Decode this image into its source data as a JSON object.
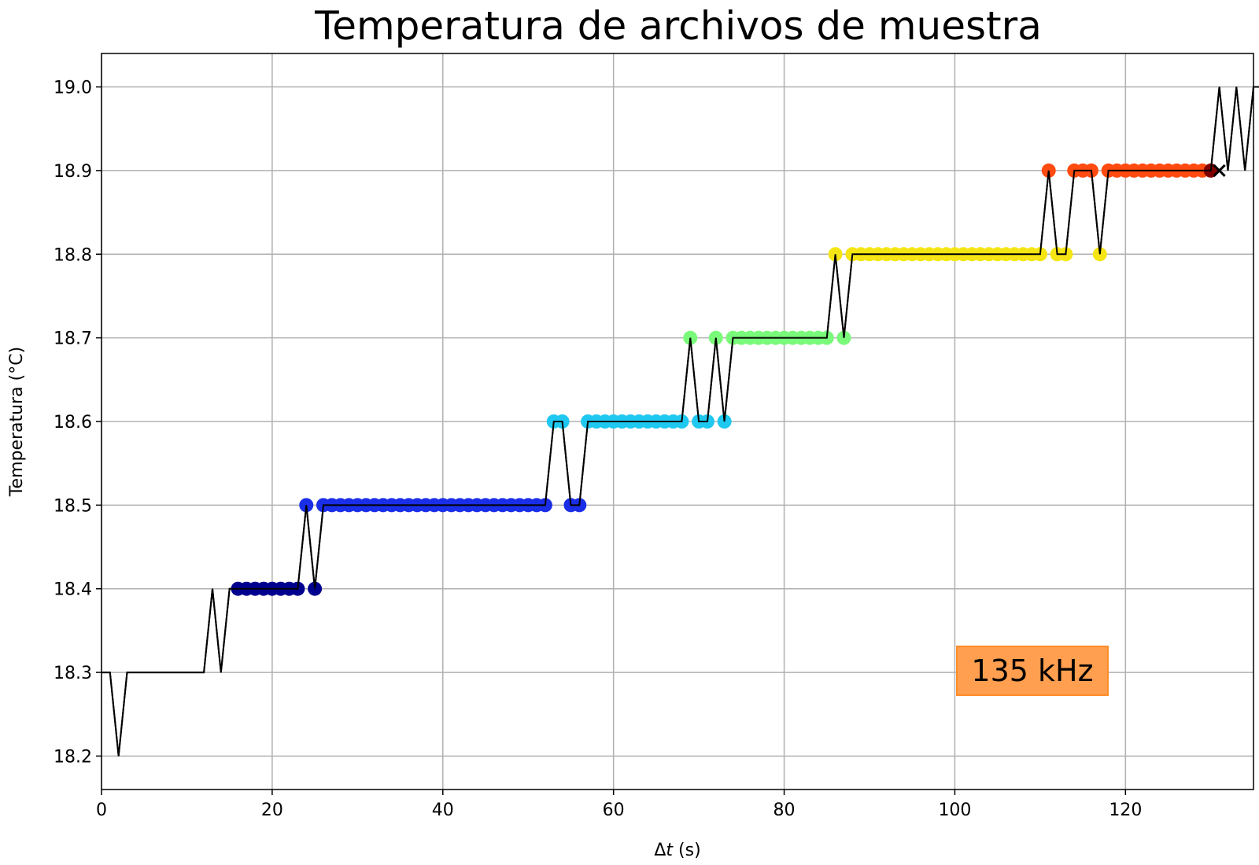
{
  "chart_data": {
    "type": "line",
    "title": "Temperatura de archivos de muestra",
    "xlabel_prefix": "Δ",
    "xlabel_var": "t",
    "xlabel_suffix": " (s)",
    "ylabel": "Temperatura (°C)",
    "xlim": [
      0,
      135
    ],
    "ylim": [
      18.16,
      19.04
    ],
    "xticks": [
      0,
      20,
      40,
      60,
      80,
      100,
      120
    ],
    "xtick_labels": [
      "0",
      "20",
      "40",
      "60",
      "80",
      "100",
      "120"
    ],
    "yticks": [
      18.2,
      18.3,
      18.4,
      18.5,
      18.6,
      18.7,
      18.8,
      18.9,
      19.0
    ],
    "ytick_labels": [
      "18.2",
      "18.3",
      "18.4",
      "18.5",
      "18.6",
      "18.7",
      "18.8",
      "18.9",
      "19.0"
    ],
    "grid": true,
    "annotation": {
      "text": "135 kHz",
      "position": "bottom-right",
      "color": "#ff9f4f"
    },
    "line_color": "#000000",
    "series": [
      {
        "values": [
          18.3,
          18.3,
          18.2,
          18.3,
          18.3,
          18.3,
          18.3,
          18.3,
          18.3,
          18.3,
          18.3,
          18.3,
          18.3,
          18.4,
          18.3,
          18.4,
          18.4,
          18.4,
          18.4,
          18.4,
          18.4,
          18.4,
          18.4,
          18.4,
          18.5,
          18.4,
          18.5,
          18.5,
          18.5,
          18.5,
          18.5,
          18.5,
          18.5,
          18.5,
          18.5,
          18.5,
          18.5,
          18.5,
          18.5,
          18.5,
          18.5,
          18.5,
          18.5,
          18.5,
          18.5,
          18.5,
          18.5,
          18.5,
          18.5,
          18.5,
          18.5,
          18.5,
          18.5,
          18.6,
          18.6,
          18.5,
          18.5,
          18.6,
          18.6,
          18.6,
          18.6,
          18.6,
          18.6,
          18.6,
          18.6,
          18.6,
          18.6,
          18.6,
          18.6,
          18.7,
          18.6,
          18.6,
          18.7,
          18.6,
          18.7,
          18.7,
          18.7,
          18.7,
          18.7,
          18.7,
          18.7,
          18.7,
          18.7,
          18.7,
          18.7,
          18.7,
          18.8,
          18.7,
          18.8,
          18.8,
          18.8,
          18.8,
          18.8,
          18.8,
          18.8,
          18.8,
          18.8,
          18.8,
          18.8,
          18.8,
          18.8,
          18.8,
          18.8,
          18.8,
          18.8,
          18.8,
          18.8,
          18.8,
          18.8,
          18.8,
          18.8,
          18.9,
          18.8,
          18.8,
          18.9,
          18.9,
          18.9,
          18.8,
          18.9,
          18.9,
          18.9,
          18.9,
          18.9,
          18.9,
          18.9,
          18.9,
          18.9,
          18.9,
          18.9,
          18.9,
          18.9,
          19.0,
          18.9,
          19.0,
          18.9,
          19.0,
          19.0
        ]
      }
    ],
    "marker_groups": [
      {
        "color": "#00008f",
        "x": [
          16,
          17,
          18,
          19,
          20,
          21,
          22,
          23,
          25
        ]
      },
      {
        "color": "#1a2ee8",
        "x": [
          24,
          26,
          27,
          28,
          29,
          30,
          31,
          32,
          33,
          34,
          35,
          36,
          37,
          38,
          39,
          40,
          41,
          42,
          43,
          44,
          45,
          46,
          47,
          48,
          49,
          50,
          51,
          52,
          55,
          56
        ]
      },
      {
        "color": "#1fc8f0",
        "x": [
          53,
          54,
          57,
          58,
          59,
          60,
          61,
          62,
          63,
          64,
          65,
          66,
          67,
          68,
          70,
          71,
          73
        ]
      },
      {
        "color": "#7afa7a",
        "x": [
          69,
          72,
          74,
          75,
          76,
          77,
          78,
          79,
          80,
          81,
          82,
          83,
          84,
          85,
          87
        ]
      },
      {
        "color": "#f5e514",
        "x": [
          86,
          88,
          89,
          90,
          91,
          92,
          93,
          94,
          95,
          96,
          97,
          98,
          99,
          100,
          101,
          102,
          103,
          104,
          105,
          106,
          107,
          108,
          109,
          110,
          112,
          113,
          117
        ]
      },
      {
        "color": "#ff4a10",
        "x": [
          111,
          114,
          115,
          116,
          118,
          119,
          120,
          121,
          122,
          123,
          124,
          125,
          126,
          127,
          128,
          129
        ]
      },
      {
        "color": "#800000",
        "x": [
          130
        ]
      }
    ],
    "cross_marker": {
      "x": 131,
      "y": 18.9
    }
  }
}
